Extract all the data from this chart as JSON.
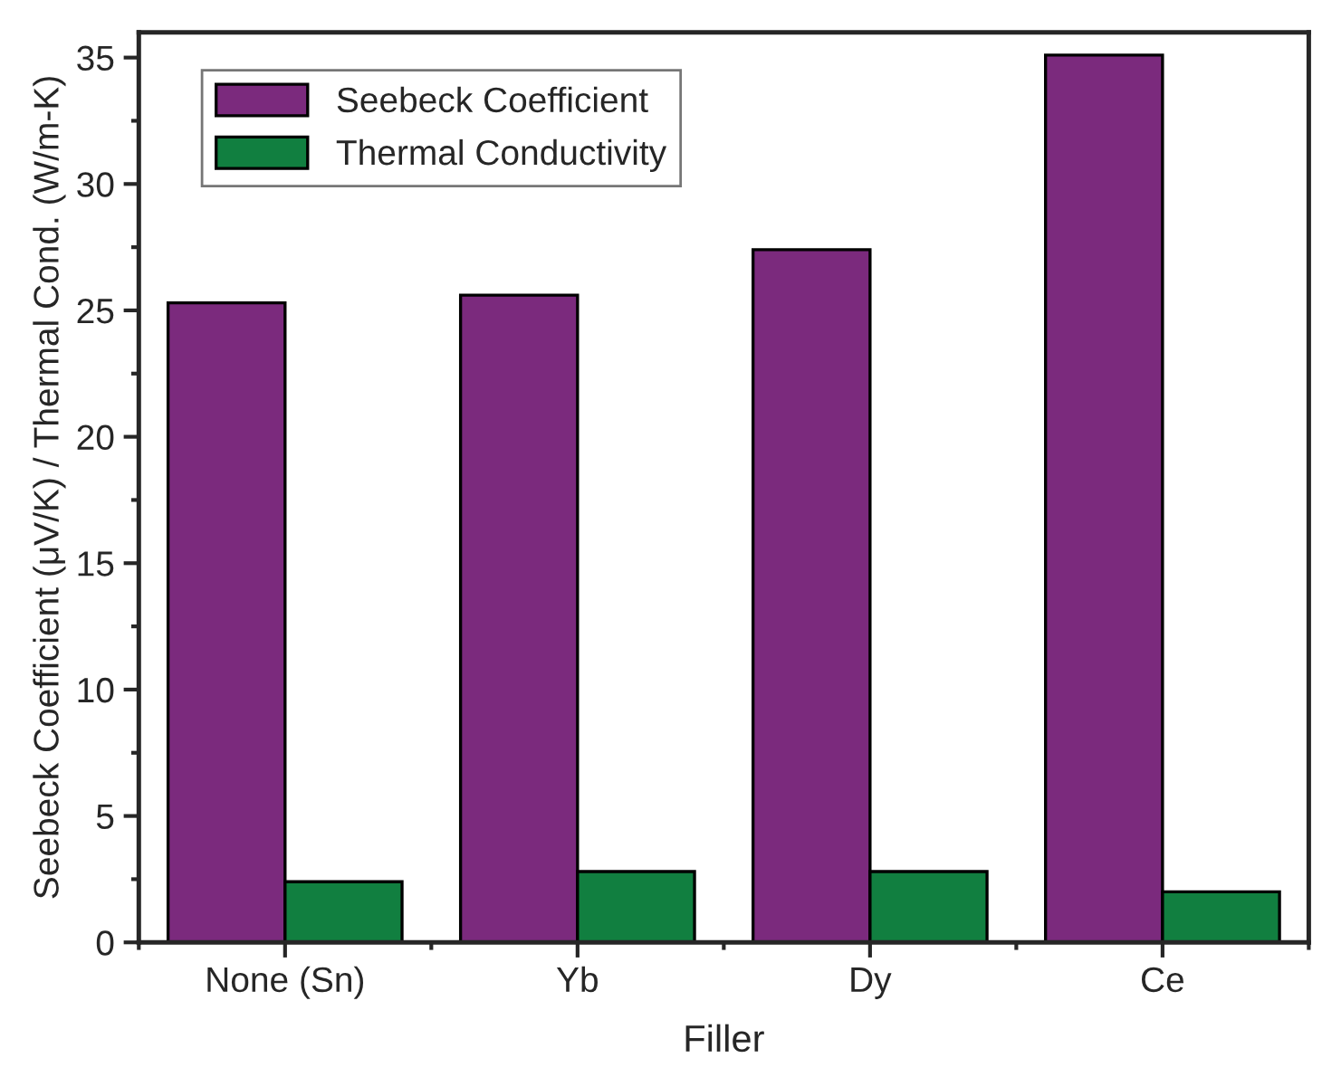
{
  "chart_data": {
    "type": "bar",
    "xlabel": "Filler",
    "ylabel": "Seebeck Coefficient (μV/K) / Thermal Cond. (W/m-K)",
    "categories": [
      "None (Sn)",
      "Yb",
      "Dy",
      "Ce"
    ],
    "series": [
      {
        "name": "Seebeck Coefficient",
        "color": "#7b2a7d",
        "values": [
          25.3,
          25.6,
          27.4,
          35.1
        ]
      },
      {
        "name": "Thermal Conductivity",
        "color": "#117f40",
        "values": [
          2.4,
          2.8,
          2.8,
          2.0
        ]
      }
    ],
    "ylim": [
      0,
      36
    ],
    "yticks": [
      0,
      5,
      10,
      15,
      20,
      25,
      30,
      35
    ],
    "grid": false,
    "legend": "top left"
  }
}
